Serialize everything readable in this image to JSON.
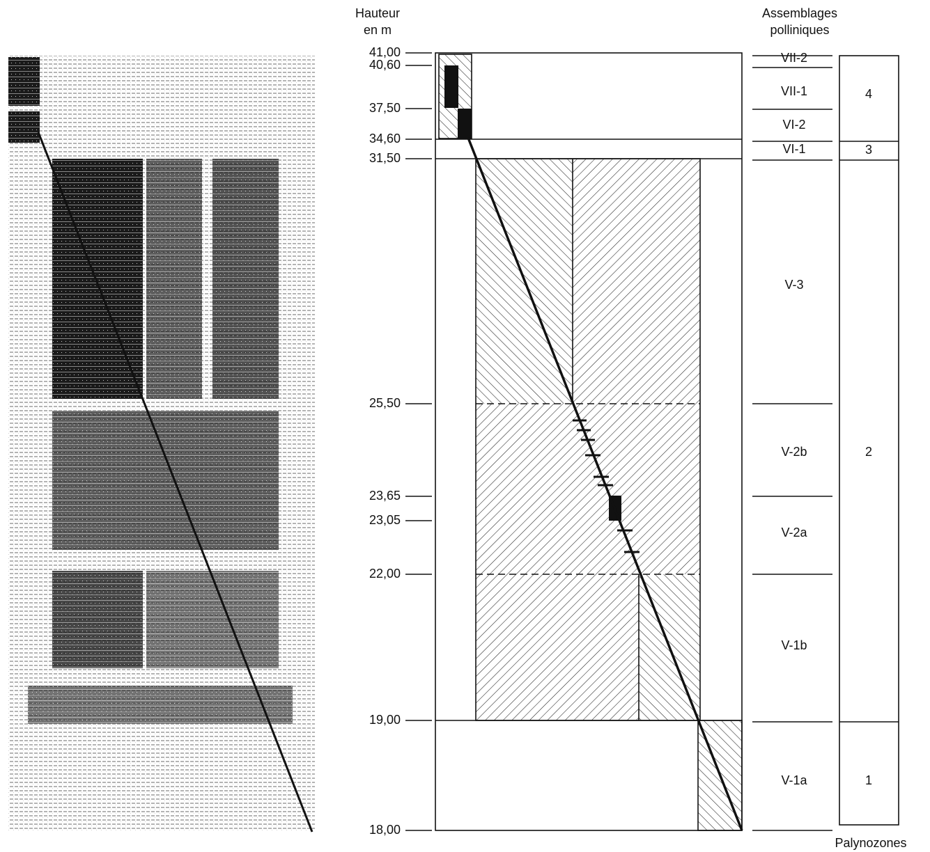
{
  "header": {
    "height_title_1": "Hauteur",
    "height_title_2": "en m",
    "assemblages_title_1": "Assemblages",
    "assemblages_title_2": "polliniques",
    "palynozones_title": "Palynozones"
  },
  "heights": [
    "41,00",
    "40,60",
    "37,50",
    "34,60",
    "31,50",
    "25,50",
    "23,65",
    "23,05",
    "22,00",
    "19,00",
    "18,00"
  ],
  "assemblages": [
    "VII-2",
    "VII-1",
    "VI-2",
    "VI-1",
    "V-3",
    "V-2b",
    "V-2a",
    "V-1b",
    "V-1a"
  ],
  "palynozones": [
    "4",
    "3",
    "2",
    "1"
  ]
}
